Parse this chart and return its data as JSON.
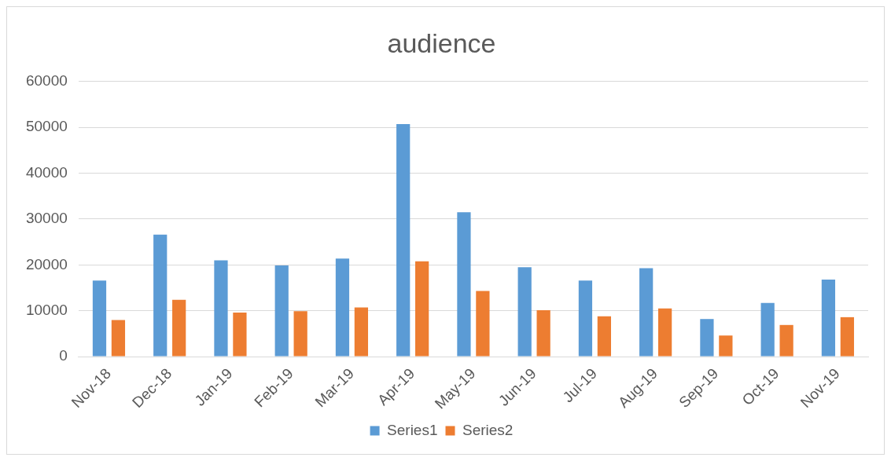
{
  "chart_data": {
    "type": "bar",
    "title": "audience",
    "categories": [
      "Nov-18",
      "Dec-18",
      "Jan-19",
      "Feb-19",
      "Mar-19",
      "Apr-19",
      "May-19",
      "Jun-19",
      "Jul-19",
      "Aug-19",
      "Sep-19",
      "Oct-19",
      "Nov-19"
    ],
    "series": [
      {
        "name": "Series1",
        "color": "#5b9bd5",
        "values": [
          16600,
          26600,
          21000,
          19900,
          21400,
          50700,
          31500,
          19500,
          16600,
          19300,
          8200,
          11700,
          16800
        ]
      },
      {
        "name": "Series2",
        "color": "#ed7d31",
        "values": [
          8000,
          12400,
          9600,
          9900,
          10700,
          20800,
          14300,
          10100,
          8800,
          10500,
          4600,
          6900,
          8600
        ]
      }
    ],
    "ylim": [
      0,
      60000
    ],
    "yticks": [
      0,
      10000,
      20000,
      30000,
      40000,
      50000,
      60000
    ],
    "grid": "y",
    "legend": "bottom"
  }
}
